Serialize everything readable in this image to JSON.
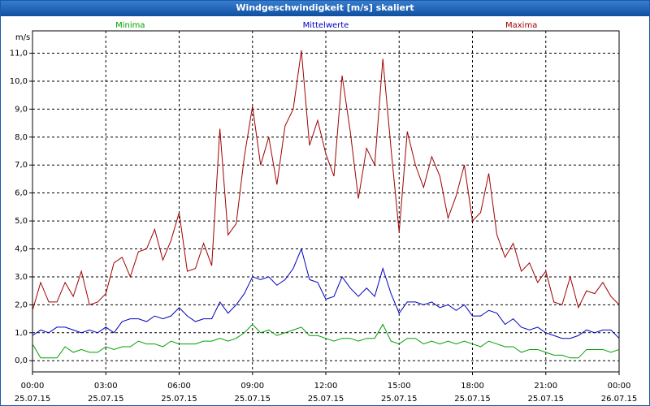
{
  "chart_data": {
    "type": "line",
    "title": "Windgeschwindigkeit [m/s] skaliert",
    "y_unit": "m/s",
    "x": [
      0,
      20,
      40,
      60,
      80,
      100,
      120,
      140,
      160,
      180,
      200,
      220,
      240,
      260,
      280,
      300,
      320,
      340,
      360,
      380,
      400,
      420,
      440,
      460,
      480,
      500,
      520,
      540,
      560,
      580,
      600,
      620,
      640,
      660,
      680,
      700,
      720,
      740,
      760,
      780,
      800,
      820,
      840,
      860,
      880,
      900,
      920,
      940,
      960,
      980,
      1000,
      1020,
      1040,
      1060,
      1080,
      1100,
      1120,
      1140,
      1160,
      1180,
      1200,
      1220,
      1240,
      1260,
      1280,
      1300,
      1320,
      1340,
      1360,
      1380,
      1400,
      1420,
      1440
    ],
    "series": [
      {
        "name": "Minima",
        "color": "#00a000",
        "values": [
          0.6,
          0.1,
          0.1,
          0.1,
          0.5,
          0.3,
          0.4,
          0.3,
          0.3,
          0.5,
          0.4,
          0.5,
          0.5,
          0.7,
          0.6,
          0.6,
          0.5,
          0.7,
          0.6,
          0.6,
          0.6,
          0.7,
          0.7,
          0.8,
          0.7,
          0.8,
          1.0,
          1.3,
          1.0,
          1.1,
          0.9,
          1.0,
          1.1,
          1.2,
          0.9,
          0.9,
          0.8,
          0.7,
          0.8,
          0.8,
          0.7,
          0.8,
          0.8,
          1.3,
          0.7,
          0.6,
          0.8,
          0.8,
          0.6,
          0.7,
          0.6,
          0.7,
          0.6,
          0.7,
          0.6,
          0.5,
          0.7,
          0.6,
          0.5,
          0.5,
          0.3,
          0.4,
          0.4,
          0.3,
          0.2,
          0.2,
          0.1,
          0.1,
          0.4,
          0.4,
          0.4,
          0.3,
          0.4
        ]
      },
      {
        "name": "Mittelwerte",
        "color": "#0000c0",
        "values": [
          0.9,
          1.1,
          1.0,
          1.2,
          1.2,
          1.1,
          1.0,
          1.1,
          1.0,
          1.2,
          1.0,
          1.4,
          1.5,
          1.5,
          1.4,
          1.6,
          1.5,
          1.6,
          1.9,
          1.6,
          1.4,
          1.5,
          1.5,
          2.1,
          1.7,
          2.0,
          2.4,
          3.0,
          2.9,
          3.0,
          2.7,
          2.9,
          3.3,
          4.0,
          2.9,
          2.8,
          2.2,
          2.3,
          3.0,
          2.6,
          2.3,
          2.6,
          2.3,
          3.3,
          2.4,
          1.7,
          2.1,
          2.1,
          2.0,
          2.1,
          1.9,
          2.0,
          1.8,
          2.0,
          1.6,
          1.6,
          1.8,
          1.7,
          1.3,
          1.5,
          1.2,
          1.1,
          1.2,
          1.0,
          0.9,
          0.8,
          0.8,
          0.9,
          1.1,
          1.0,
          1.1,
          1.1,
          0.8
        ]
      },
      {
        "name": "Maxima",
        "color": "#a00000",
        "values": [
          1.8,
          2.8,
          2.1,
          2.1,
          2.8,
          2.3,
          3.2,
          2.0,
          2.1,
          2.4,
          3.5,
          3.7,
          3.0,
          3.9,
          4.0,
          4.7,
          3.6,
          4.3,
          5.3,
          3.2,
          3.3,
          4.2,
          3.4,
          8.3,
          4.5,
          4.9,
          7.3,
          9.1,
          7.0,
          8.0,
          6.3,
          8.4,
          9.0,
          11.1,
          7.7,
          8.6,
          7.4,
          6.6,
          10.2,
          8.2,
          5.8,
          7.6,
          7.0,
          10.8,
          7.6,
          4.6,
          8.2,
          7.0,
          6.2,
          7.3,
          6.6,
          5.1,
          5.9,
          7.0,
          5.0,
          5.3,
          6.7,
          4.5,
          3.7,
          4.2,
          3.2,
          3.5,
          2.8,
          3.2,
          2.1,
          2.0,
          3.0,
          1.9,
          2.5,
          2.4,
          2.8,
          2.3,
          2.0
        ]
      }
    ],
    "xlim": [
      0,
      1440
    ],
    "xticks": [
      {
        "value": 0,
        "label": "00:00",
        "date": "25.07.15"
      },
      {
        "value": 180,
        "label": "03:00",
        "date": "25.07.15"
      },
      {
        "value": 360,
        "label": "06:00",
        "date": "25.07.15"
      },
      {
        "value": 540,
        "label": "09:00",
        "date": "25.07.15"
      },
      {
        "value": 720,
        "label": "12:00",
        "date": "25.07.15"
      },
      {
        "value": 900,
        "label": "15:00",
        "date": "25.07.15"
      },
      {
        "value": 1080,
        "label": "18:00",
        "date": "25.07.15"
      },
      {
        "value": 1260,
        "label": "21:00",
        "date": "25.07.15"
      },
      {
        "value": 1440,
        "label": "00:00",
        "date": "26.07.15"
      }
    ],
    "ylim": [
      -0.4,
      11.8
    ],
    "yticks": [
      {
        "value": 0,
        "label": "0,0"
      },
      {
        "value": 1,
        "label": "1,0"
      },
      {
        "value": 2,
        "label": "2,0"
      },
      {
        "value": 3,
        "label": "3,0"
      },
      {
        "value": 4,
        "label": "4,0"
      },
      {
        "value": 5,
        "label": "5,0"
      },
      {
        "value": 6,
        "label": "6,0"
      },
      {
        "value": 7,
        "label": "7,0"
      },
      {
        "value": 8,
        "label": "8,0"
      },
      {
        "value": 9,
        "label": "9,0"
      },
      {
        "value": 10,
        "label": "10,0"
      },
      {
        "value": 11,
        "label": "11,0"
      }
    ],
    "grid": true
  }
}
